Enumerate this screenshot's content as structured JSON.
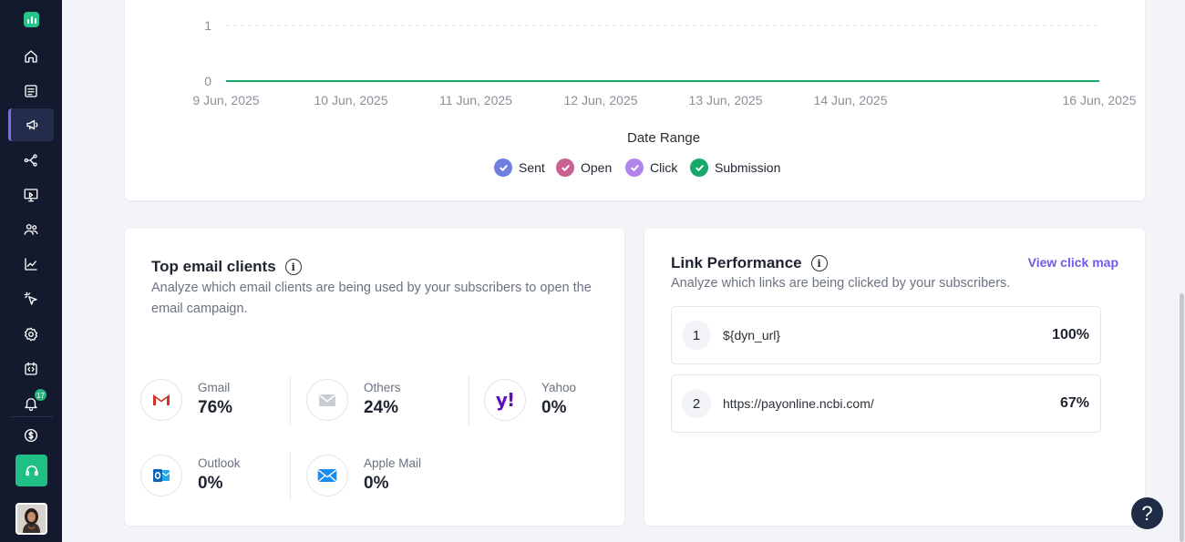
{
  "sidebar": {
    "items": [
      {
        "icon": "home-icon"
      },
      {
        "icon": "forms-icon"
      },
      {
        "icon": "campaign-megaphone-icon",
        "active": true
      },
      {
        "icon": "workflow-icon"
      },
      {
        "icon": "landing-page-icon"
      },
      {
        "icon": "contacts-icon"
      },
      {
        "icon": "analytics-icon"
      },
      {
        "icon": "click-icon"
      },
      {
        "icon": "settings-gear-icon"
      },
      {
        "icon": "integration-icon"
      },
      {
        "icon": "bell-icon"
      },
      {
        "icon": "billing-icon"
      }
    ],
    "notification_count": "17",
    "accent_color": "#7a6cf0",
    "support_color": "#1fbf86"
  },
  "chart_data": {
    "type": "line",
    "x": [
      "9 Jun, 2025",
      "10 Jun, 2025",
      "11 Jun, 2025",
      "12 Jun, 2025",
      "13 Jun, 2025",
      "14 Jun, 2025",
      "16 Jun, 2025"
    ],
    "y_ticks": [
      "1",
      "0"
    ],
    "ylim": [
      0,
      1
    ],
    "xlabel": "Date Range",
    "series": [
      {
        "name": "Sent",
        "color": "#6f7fe0",
        "values": [
          0,
          0,
          0,
          0,
          0,
          0,
          0
        ]
      },
      {
        "name": "Open",
        "color": "#c8618f",
        "values": [
          0,
          0,
          0,
          0,
          0,
          0,
          0
        ]
      },
      {
        "name": "Click",
        "color": "#b084ea",
        "values": [
          0,
          0,
          0,
          0,
          0,
          0,
          0
        ]
      },
      {
        "name": "Submission",
        "color": "#16a96a",
        "values": [
          0,
          0,
          0,
          0,
          0,
          0,
          0
        ]
      }
    ],
    "legend_position": "bottom-center",
    "grid": true
  },
  "clients": {
    "title": "Top email clients",
    "description_line1": "Analyze which email clients are being used by your subscribers to open the",
    "description_line2": "email campaign.",
    "items": [
      {
        "name": "Gmail",
        "percent": "76%",
        "icon": "gmail-icon"
      },
      {
        "name": "Others",
        "percent": "24%",
        "icon": "envelope-icon"
      },
      {
        "name": "Yahoo",
        "percent": "0%",
        "icon": "yahoo-icon"
      },
      {
        "name": "Outlook",
        "percent": "0%",
        "icon": "outlook-icon"
      },
      {
        "name": "Apple Mail",
        "percent": "0%",
        "icon": "apple-mail-icon"
      }
    ]
  },
  "links": {
    "title": "Link Performance",
    "description": "Analyze which links are being clicked by your subscribers.",
    "view_label": "View click map",
    "rows": [
      {
        "rank": "1",
        "url": "${dyn_url}",
        "percent": "100%"
      },
      {
        "rank": "2",
        "url": "https://payonline.ncbi.com/",
        "percent": "67%"
      }
    ]
  },
  "help_label": "?"
}
